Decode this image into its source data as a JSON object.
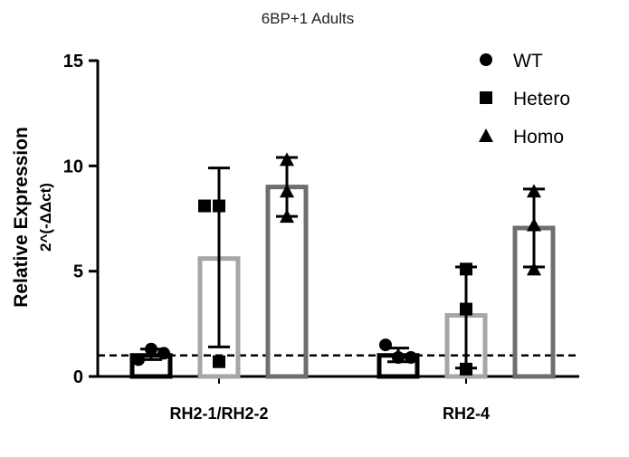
{
  "chart_data": {
    "type": "bar",
    "title": "6BP+1 Adults",
    "ylabel": "Relative Expression",
    "ylabel2": "2^(-ΔΔct)",
    "xlabel": "",
    "ylim": [
      0,
      15
    ],
    "yticks": [
      "0",
      "5",
      "10",
      "15"
    ],
    "reference_line": 1,
    "categories": [
      "RH2-1/RH2-2",
      "RH2-4"
    ],
    "legend_position": "top-right",
    "series": [
      {
        "name": "WT",
        "marker": "circle",
        "color": "#000000",
        "values": [
          1.0,
          1.0
        ],
        "error": [
          [
            0.8,
            1.3
          ],
          [
            0.7,
            1.35
          ]
        ],
        "points": [
          [
            0.8,
            1.3,
            1.1
          ],
          [
            1.5,
            0.9,
            0.9
          ]
        ]
      },
      {
        "name": "Hetero",
        "marker": "square",
        "color": "#a6a6a6",
        "values": [
          5.6,
          2.9
        ],
        "error": [
          [
            1.4,
            9.9
          ],
          [
            0.4,
            5.2
          ]
        ],
        "points": [
          [
            8.1,
            8.1,
            0.7
          ],
          [
            5.1,
            3.2,
            0.35
          ]
        ]
      },
      {
        "name": "Homo",
        "marker": "triangle",
        "color": "#6e6e6e",
        "values": [
          9.0,
          7.05
        ],
        "error": [
          [
            7.6,
            10.4
          ],
          [
            5.2,
            8.9
          ]
        ],
        "points": [
          [
            10.3,
            8.8,
            7.6
          ],
          [
            8.8,
            7.2,
            5.1
          ]
        ]
      }
    ]
  }
}
